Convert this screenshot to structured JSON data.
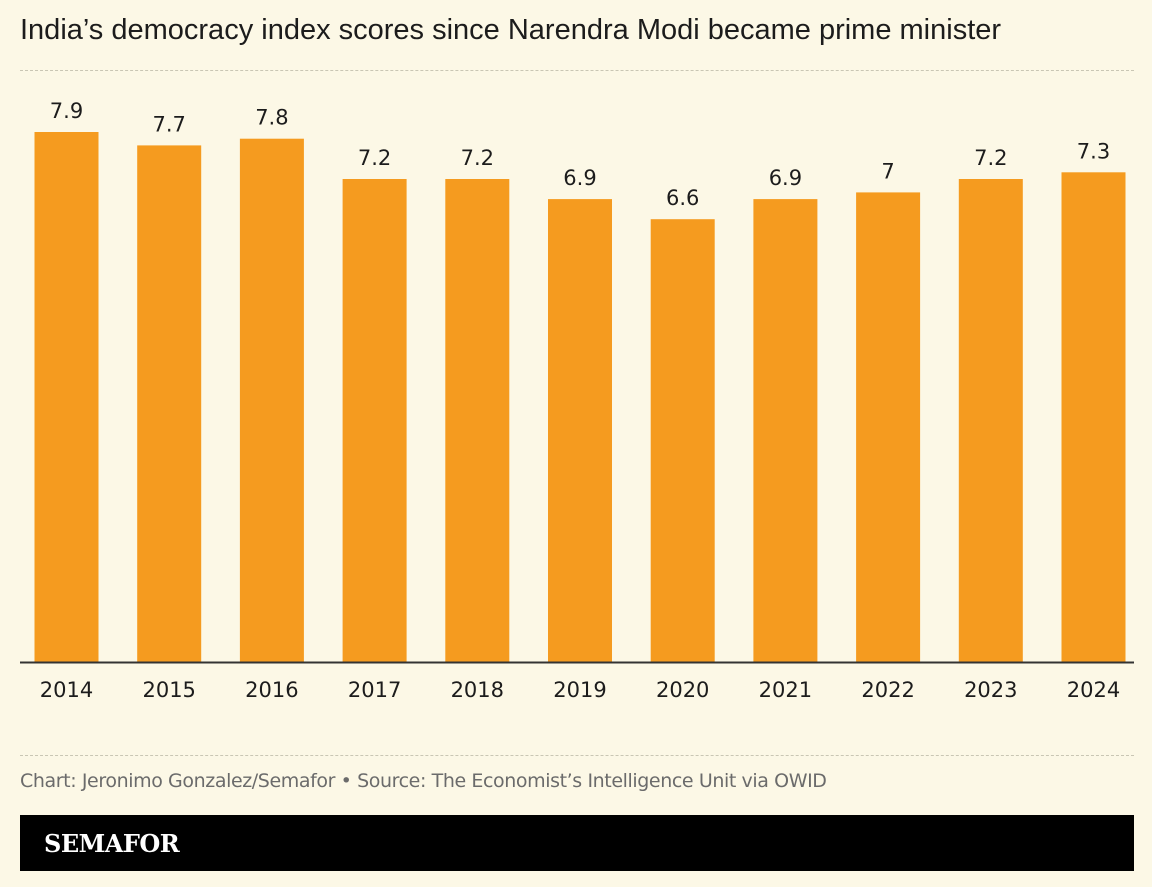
{
  "title": "India’s democracy index scores since Narendra Modi became prime minister",
  "source": "Chart: Jeronimo Gonzalez/Semafor • Source: The Economist’s Intelligence Unit via OWID",
  "footer": {
    "logo_text": "SEMAFOR"
  },
  "colors": {
    "background": "#fcf8e6",
    "bar": "#f59b1f",
    "axis": "#333333",
    "footer": "#000000"
  },
  "chart_data": {
    "type": "bar",
    "title": "India’s democracy index scores since Narendra Modi became prime minister",
    "xlabel": "",
    "ylabel": "",
    "categories": [
      "2014",
      "2015",
      "2016",
      "2017",
      "2018",
      "2019",
      "2020",
      "2021",
      "2022",
      "2023",
      "2024"
    ],
    "values": [
      7.9,
      7.7,
      7.8,
      7.2,
      7.2,
      6.9,
      6.6,
      6.9,
      7,
      7.2,
      7.3
    ],
    "value_labels": [
      "7.9",
      "7.7",
      "7.8",
      "7.2",
      "7.2",
      "6.9",
      "6.6",
      "6.9",
      "7",
      "7.2",
      "7.3"
    ],
    "ylim": [
      0,
      7.9
    ],
    "grid": false,
    "legend": "none"
  }
}
